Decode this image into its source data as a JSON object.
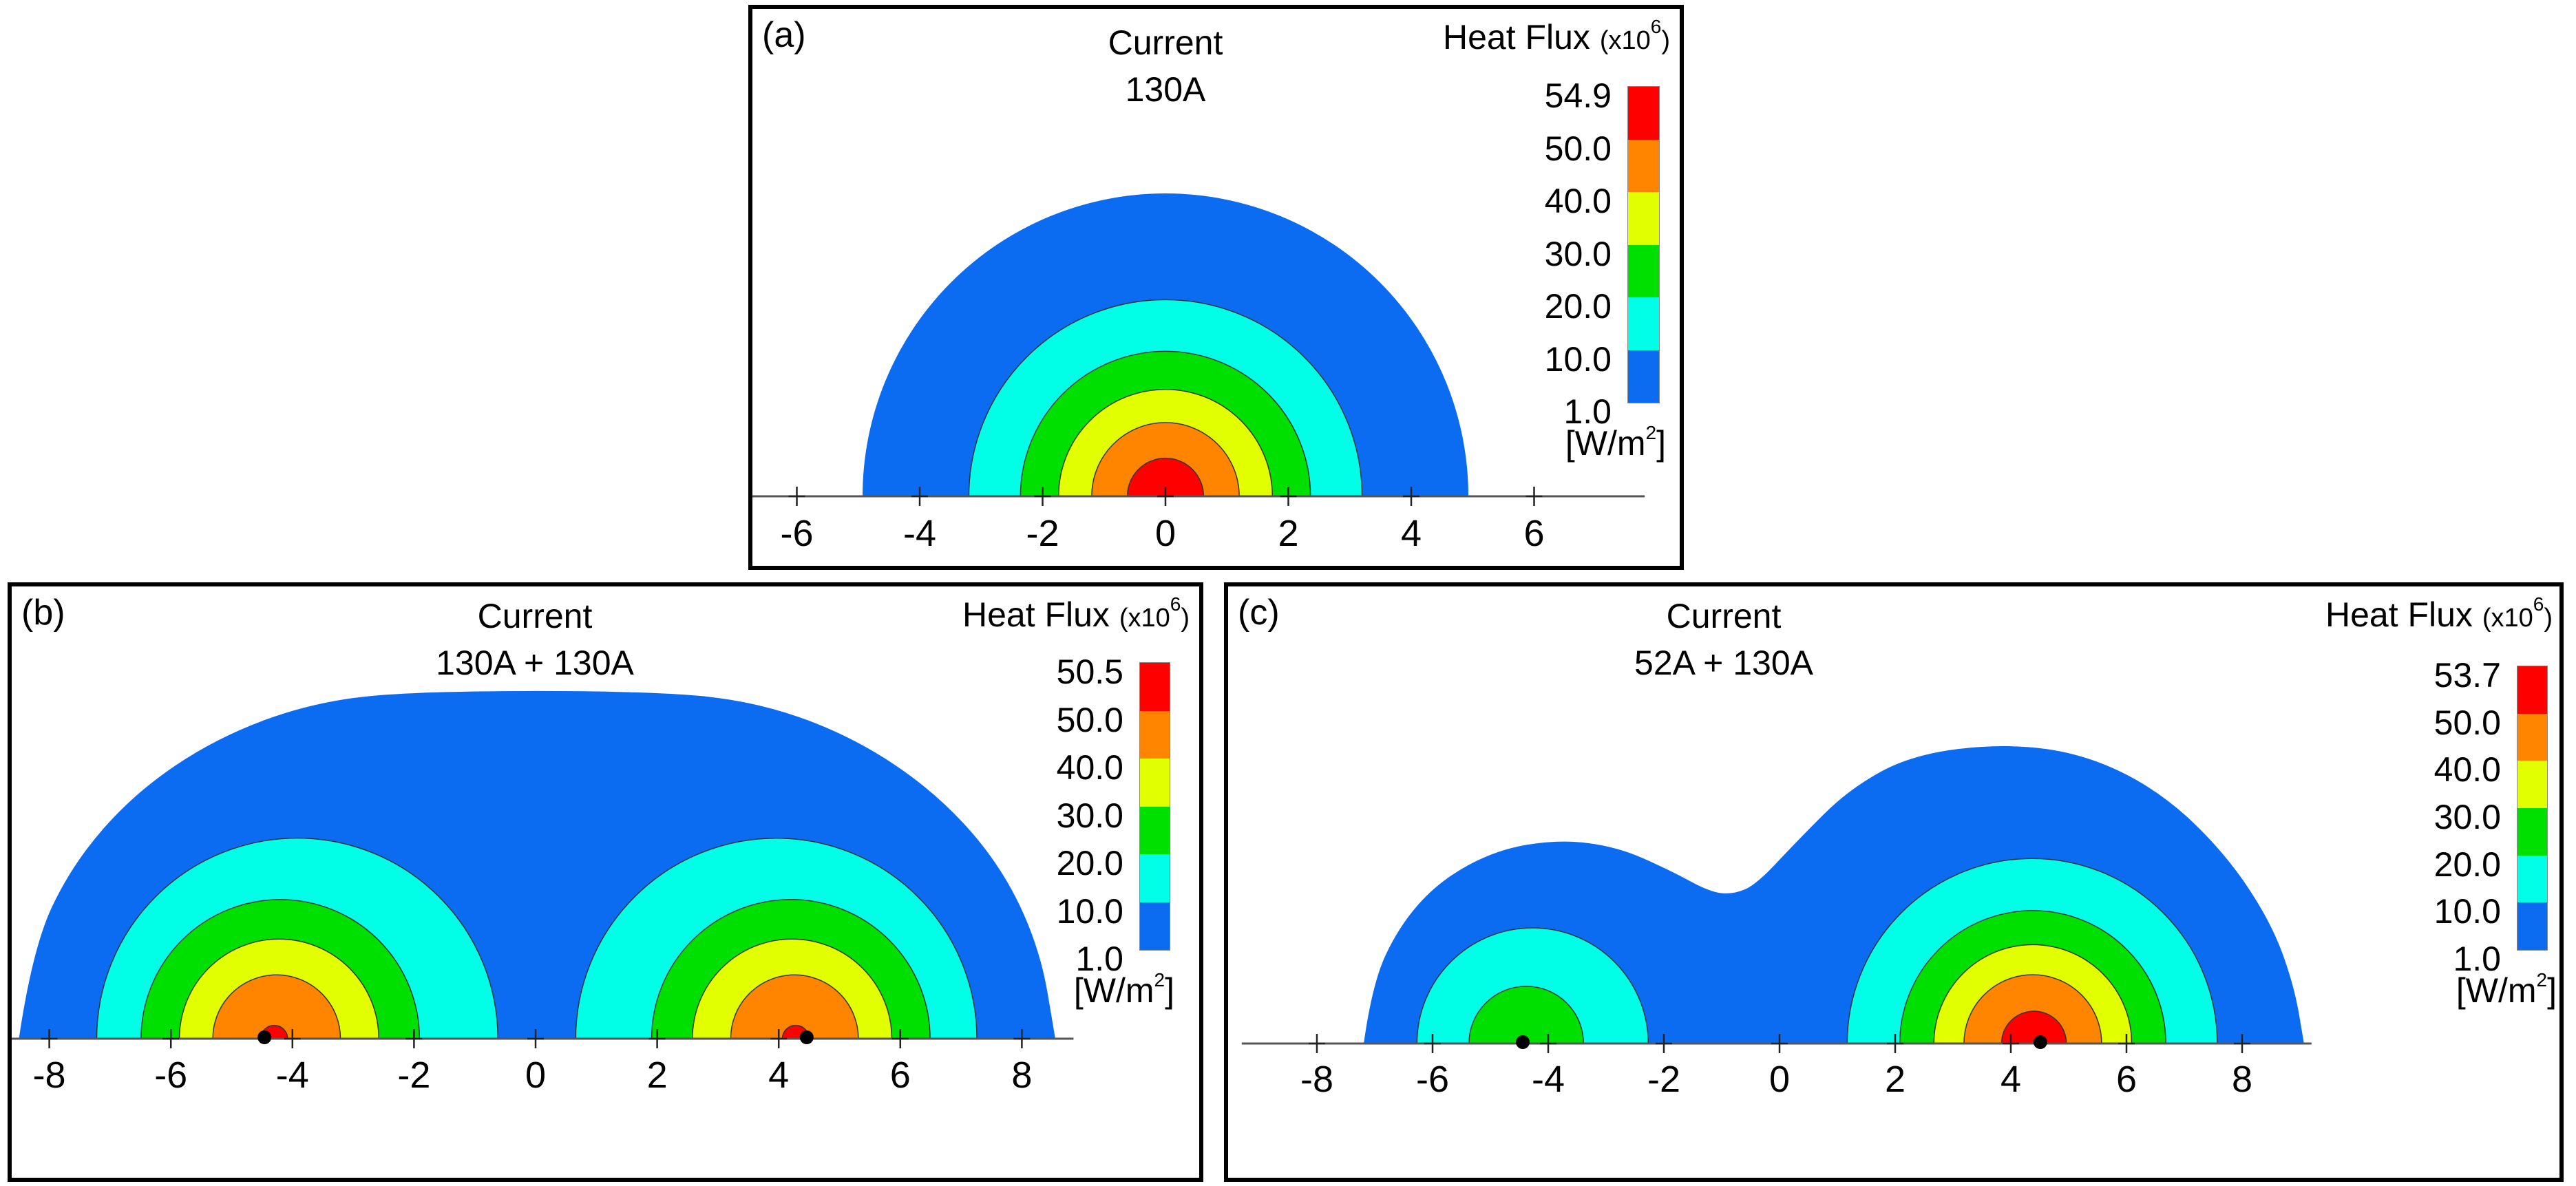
{
  "colors": {
    "1.0": "#0b6cf2",
    "10.0": "#00ffe6",
    "20.0": "#00e000",
    "30.0": "#e2ff00",
    "40.0": "#ff8400",
    "50.0": "#ff0000",
    "outline": "#333333",
    "axis": "#555555"
  },
  "chart_data": [
    {
      "type": "contour",
      "panel_label": "(a)",
      "title_line1": "Current",
      "title_line2": "130A",
      "colorbar": {
        "title": "Heat Flux",
        "scale_prefix": "(x10",
        "scale_exp": "6",
        "scale_suffix": ")",
        "unit_prefix": "[W/m",
        "unit_exp": "2",
        "unit_suffix": "]",
        "labels": [
          "54.9",
          "50.0",
          "40.0",
          "30.0",
          "20.0",
          "10.0",
          "1.0"
        ]
      },
      "xticks": [
        "-6",
        "-4",
        "-2",
        "0",
        "2",
        "4",
        "6"
      ],
      "xtick_values": [
        -6,
        -4,
        -2,
        0,
        2,
        4,
        6
      ],
      "axis_range": [
        -9,
        7.8
      ],
      "outer_contour": {
        "level": 1.0,
        "circle": {
          "cx": 0,
          "r": 4.93
        }
      },
      "bands": [
        {
          "level": 10.0,
          "cx": 0,
          "r": 3.2
        },
        {
          "level": 20.0,
          "cx": 0,
          "r": 2.36
        },
        {
          "level": 30.0,
          "cx": 0,
          "r": 1.74
        },
        {
          "level": 40.0,
          "cx": 0,
          "r": 1.2
        },
        {
          "level": 50.0,
          "cx": 0,
          "r": 0.62
        }
      ],
      "sources": []
    },
    {
      "type": "contour",
      "panel_label": "(b)",
      "title_line1": "Current",
      "title_line2": "130A + 130A",
      "colorbar": {
        "title": "Heat Flux",
        "scale_prefix": "(x10",
        "scale_exp": "6",
        "scale_suffix": ")",
        "unit_prefix": "[W/m",
        "unit_exp": "2",
        "unit_suffix": "]",
        "labels": [
          "50.5",
          "50.0",
          "40.0",
          "30.0",
          "20.0",
          "10.0",
          "1.0"
        ]
      },
      "xticks": [
        "-8",
        "-6",
        "-4",
        "-2",
        "0",
        "2",
        "4",
        "6",
        "8"
      ],
      "xtick_values": [
        -8,
        -6,
        -4,
        -2,
        0,
        2,
        4,
        6,
        8
      ],
      "axis_range": [
        -9,
        8.85
      ],
      "outer_contour": {
        "level": 1.0,
        "points": [
          [
            -8.5,
            0
          ],
          [
            -8.28,
            1.48
          ],
          [
            -7.63,
            2.86
          ],
          [
            -6.6,
            4.04
          ],
          [
            -5.25,
            4.95
          ],
          [
            -3.68,
            5.53
          ],
          [
            -2,
            5.72
          ],
          [
            2,
            5.72
          ],
          [
            3.7,
            5.53
          ],
          [
            5.25,
            4.95
          ],
          [
            6.6,
            4.04
          ],
          [
            7.65,
            2.86
          ],
          [
            8.3,
            1.48
          ],
          [
            8.55,
            0
          ]
        ]
      },
      "bands": [
        {
          "level": 10.0,
          "cx": -3.92,
          "r": 3.3
        },
        {
          "level": 20.0,
          "cx": -4.2,
          "r": 2.29
        },
        {
          "level": 30.0,
          "cx": -4.22,
          "r": 1.64
        },
        {
          "level": 40.0,
          "cx": -4.26,
          "r": 1.05
        },
        {
          "level": 50.0,
          "cx": -4.3,
          "r": 0.22
        },
        {
          "level": 10.0,
          "cx": 3.96,
          "r": 3.3
        },
        {
          "level": 20.0,
          "cx": 4.2,
          "r": 2.29
        },
        {
          "level": 30.0,
          "cx": 4.22,
          "r": 1.64
        },
        {
          "level": 40.0,
          "cx": 4.26,
          "r": 1.05
        },
        {
          "level": 50.0,
          "cx": 4.28,
          "r": 0.22
        }
      ],
      "sources": [
        -4.46,
        4.46
      ]
    },
    {
      "type": "contour",
      "panel_label": "(c)",
      "title_line1": "Current",
      "title_line2": "52A + 130A",
      "colorbar": {
        "title": "Heat Flux",
        "scale_prefix": "(x10",
        "scale_exp": "6",
        "scale_suffix": ")",
        "unit_prefix": "[W/m",
        "unit_exp": "2",
        "unit_suffix": "]",
        "labels": [
          "53.7",
          "50.0",
          "40.0",
          "30.0",
          "20.0",
          "10.0",
          "1.0"
        ]
      },
      "xticks": [
        "-8",
        "-6",
        "-4",
        "-2",
        "0",
        "2",
        "4",
        "6",
        "8"
      ],
      "xtick_values": [
        -8,
        -6,
        -4,
        -2,
        0,
        2,
        4,
        6,
        8
      ],
      "axis_range": [
        -9.3,
        9.2
      ],
      "outer_contour": {
        "level": 1.0,
        "points": [
          [
            -7.19,
            0
          ],
          [
            -7.05,
            1.0
          ],
          [
            -6.6,
            2.0
          ],
          [
            -5.9,
            2.8
          ],
          [
            -4.9,
            3.35
          ],
          [
            -3.8,
            3.53
          ],
          [
            -2.8,
            3.4
          ],
          [
            -1.9,
            3.0
          ],
          [
            -1.2,
            2.62
          ],
          [
            -0.8,
            2.58
          ],
          [
            -0.4,
            2.75
          ],
          [
            0.3,
            3.5
          ],
          [
            1.2,
            4.4
          ],
          [
            2.3,
            5.0
          ],
          [
            3.9,
            5.19
          ],
          [
            5.3,
            5.0
          ],
          [
            6.6,
            4.35
          ],
          [
            7.7,
            3.3
          ],
          [
            8.5,
            2.1
          ],
          [
            8.9,
            1.0
          ],
          [
            9.07,
            0
          ]
        ]
      },
      "bands": [
        {
          "level": 10.0,
          "cx": -4.27,
          "r": 2.0
        },
        {
          "level": 20.0,
          "cx": -4.38,
          "r": 0.99
        },
        {
          "level": 10.0,
          "cx": 4.37,
          "r": 3.2
        },
        {
          "level": 20.0,
          "cx": 4.38,
          "r": 2.3
        },
        {
          "level": 30.0,
          "cx": 4.38,
          "r": 1.71
        },
        {
          "level": 40.0,
          "cx": 4.38,
          "r": 1.19
        },
        {
          "level": 50.0,
          "cx": 4.4,
          "r": 0.56
        }
      ],
      "sources": [
        -4.44,
        4.51
      ]
    }
  ]
}
